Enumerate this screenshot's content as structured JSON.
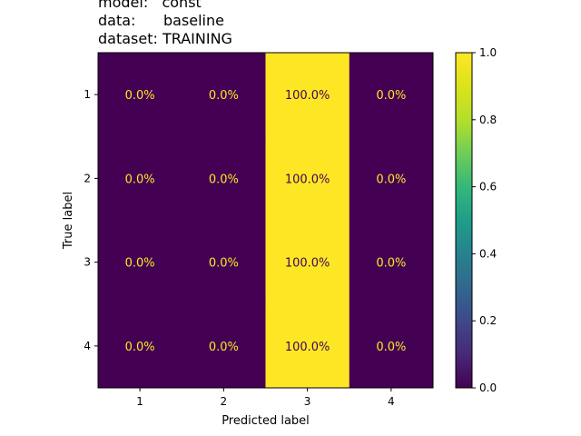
{
  "chart_data": {
    "type": "heatmap",
    "title_lines": [
      "model:   const",
      "data:      baseline",
      "dataset: TRAINING"
    ],
    "xlabel": "Predicted label",
    "ylabel": "True label",
    "x_categories": [
      "1",
      "2",
      "3",
      "4"
    ],
    "y_categories": [
      "1",
      "2",
      "3",
      "4"
    ],
    "values": [
      [
        0.0,
        0.0,
        1.0,
        0.0
      ],
      [
        0.0,
        0.0,
        1.0,
        0.0
      ],
      [
        0.0,
        0.0,
        1.0,
        0.0
      ],
      [
        0.0,
        0.0,
        1.0,
        0.0
      ]
    ],
    "cell_labels": [
      [
        "0.0%",
        "0.0%",
        "100.0%",
        "0.0%"
      ],
      [
        "0.0%",
        "0.0%",
        "100.0%",
        "0.0%"
      ],
      [
        "0.0%",
        "0.0%",
        "100.0%",
        "0.0%"
      ],
      [
        "0.0%",
        "0.0%",
        "100.0%",
        "0.0%"
      ]
    ],
    "colorbar": {
      "range": [
        0.0,
        1.0
      ],
      "ticks": [
        "0.0",
        "0.2",
        "0.4",
        "0.6",
        "0.8",
        "1.0"
      ],
      "colormap": "viridis"
    },
    "colors": {
      "low": "#440154",
      "high": "#fde725",
      "text_on_low": "#fde725",
      "text_on_high": "#440154"
    }
  }
}
